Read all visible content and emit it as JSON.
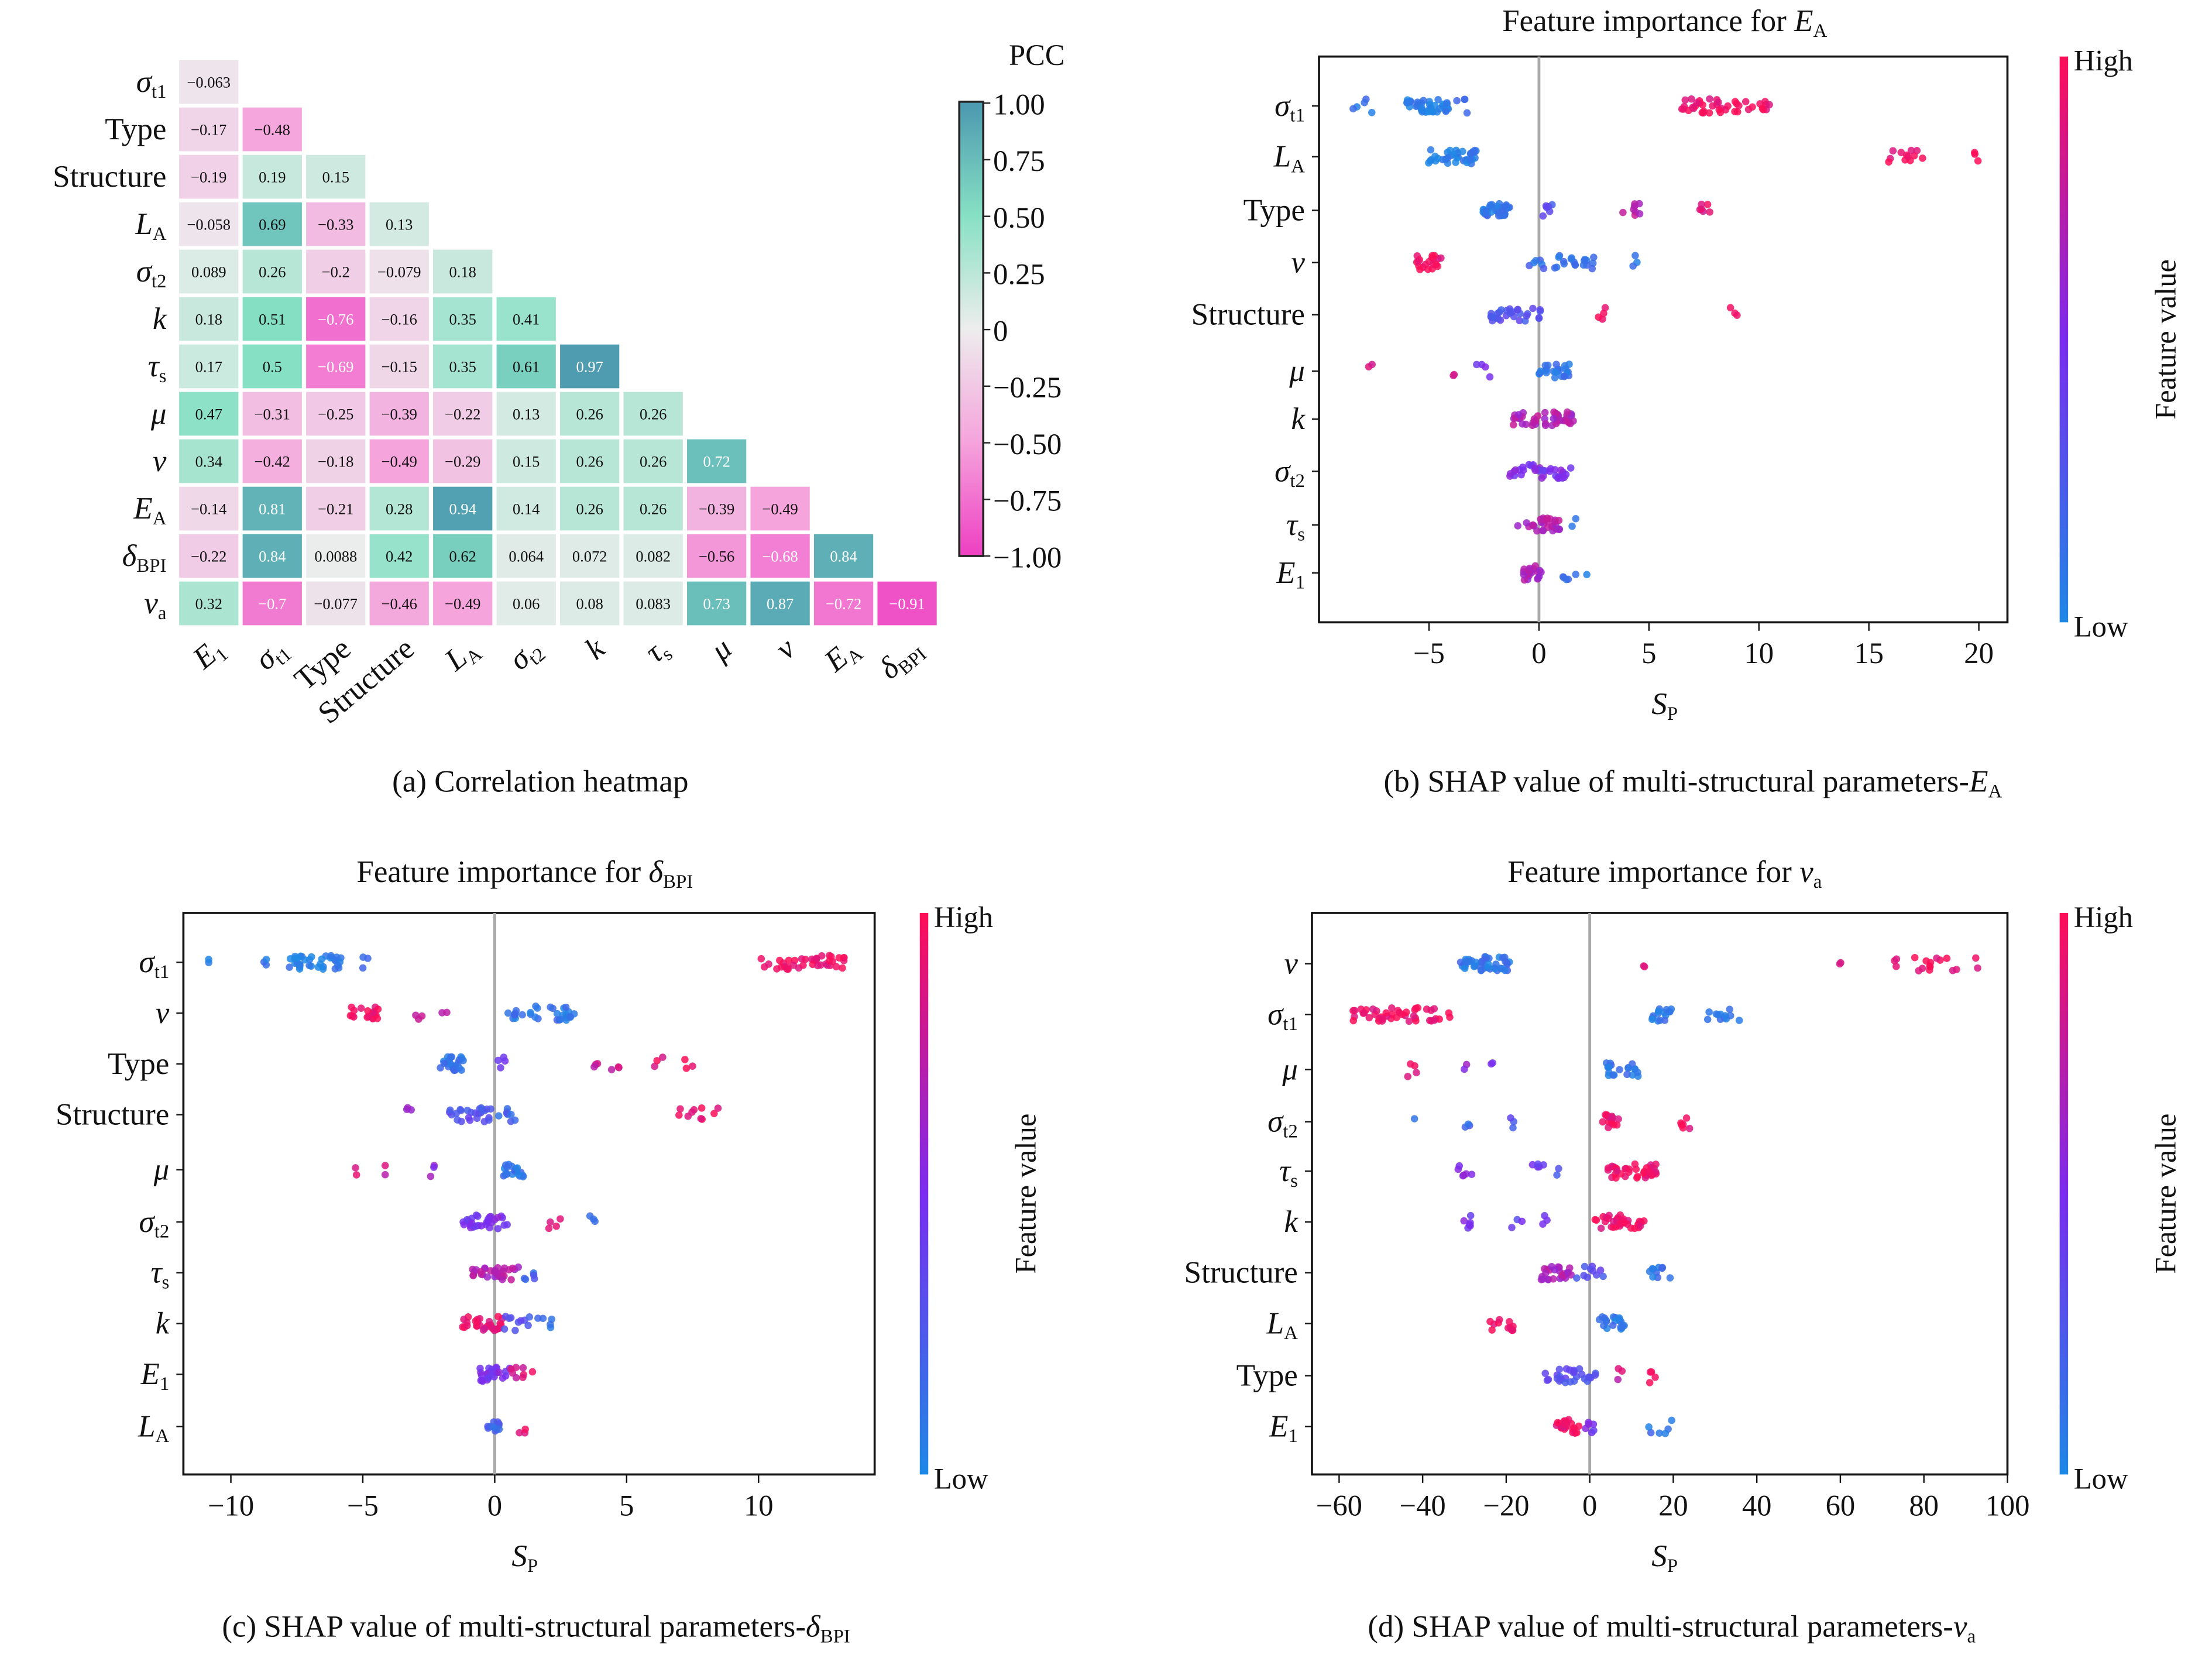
{
  "colors": {
    "pcc_scale": [
      "#ee3fc2",
      "#f5a3dc",
      "#ededed",
      "#86e0c3",
      "#4b98b0"
    ],
    "shap_low": "#1e88e5",
    "shap_mid": "#7b2cf0",
    "shap_high": "#ff0d57"
  },
  "heatmap": {
    "type": "heatmap",
    "caption": "(a) Correlation heatmap",
    "colorbar_title": "PCC",
    "colorbar_ticks": [
      "1.00",
      "0.75",
      "0.50",
      "0.25",
      "0",
      "−0.25",
      "−0.50",
      "−0.75",
      "−1.00"
    ],
    "colorbar_range": [
      -1,
      1
    ],
    "row_labels": [
      {
        "t": "σ",
        "s": "t1"
      },
      {
        "t": "Type",
        "s": ""
      },
      {
        "t": "Structure",
        "s": ""
      },
      {
        "t": "L",
        "s": "A"
      },
      {
        "t": "σ",
        "s": "t2"
      },
      {
        "t": "k",
        "s": ""
      },
      {
        "t": "τ",
        "s": "s"
      },
      {
        "t": "μ",
        "s": ""
      },
      {
        "t": "ν",
        "s": ""
      },
      {
        "t": "E",
        "s": "A"
      },
      {
        "t": "δ",
        "s": "BPI"
      },
      {
        "t": "ν",
        "s": "a"
      }
    ],
    "col_labels": [
      {
        "t": "E",
        "s": "1"
      },
      {
        "t": "σ",
        "s": "t1"
      },
      {
        "t": "Type",
        "s": ""
      },
      {
        "t": "Structure",
        "s": ""
      },
      {
        "t": "L",
        "s": "A"
      },
      {
        "t": "σ",
        "s": "t2"
      },
      {
        "t": "k",
        "s": ""
      },
      {
        "t": "τ",
        "s": "s"
      },
      {
        "t": "μ",
        "s": ""
      },
      {
        "t": "ν",
        "s": ""
      },
      {
        "t": "E",
        "s": "A"
      },
      {
        "t": "δ",
        "s": "BPI"
      }
    ],
    "values": [
      [
        "−0.063"
      ],
      [
        "−0.17",
        "−0.48"
      ],
      [
        "−0.19",
        "0.19",
        "0.15"
      ],
      [
        "−0.058",
        "0.69",
        "−0.33",
        "0.13"
      ],
      [
        "0.089",
        "0.26",
        "−0.2",
        "−0.079",
        "0.18"
      ],
      [
        "0.18",
        "0.51",
        "−0.76",
        "−0.16",
        "0.35",
        "0.41"
      ],
      [
        "0.17",
        "0.5",
        "−0.69",
        "−0.15",
        "0.35",
        "0.61",
        "0.97"
      ],
      [
        "0.47",
        "−0.31",
        "−0.25",
        "−0.39",
        "−0.22",
        "0.13",
        "0.26",
        "0.26"
      ],
      [
        "0.34",
        "−0.42",
        "−0.18",
        "−0.49",
        "−0.29",
        "0.15",
        "0.26",
        "0.26",
        "0.72"
      ],
      [
        "−0.14",
        "0.81",
        "−0.21",
        "0.28",
        "0.94",
        "0.14",
        "0.26",
        "0.26",
        "−0.39",
        "−0.49"
      ],
      [
        "−0.22",
        "0.84",
        "0.0088",
        "0.42",
        "0.62",
        "0.064",
        "0.072",
        "0.082",
        "−0.56",
        "−0.68",
        "0.84"
      ],
      [
        "0.32",
        "−0.7",
        "−0.077",
        "−0.46",
        "−0.49",
        "0.06",
        "0.08",
        "0.083",
        "0.73",
        "0.87",
        "−0.72",
        "−0.91"
      ]
    ]
  },
  "chart_data": [
    {
      "type": "scatter",
      "title": "Feature importance for ",
      "title_sym": {
        "t": "E",
        "s": "A"
      },
      "xlabel": {
        "t": "S",
        "s": "P"
      },
      "caption": "(b) SHAP value of multi-structural parameters-",
      "caption_sym": {
        "t": "E",
        "s": "A"
      },
      "xticks": [
        -5,
        0,
        5,
        10,
        15,
        20
      ],
      "xlim": [
        -10,
        21.3
      ],
      "colorbar": {
        "high": "High",
        "low": "Low",
        "label": "Feature value"
      },
      "features": [
        {
          "label": {
            "t": "σ",
            "s": "t1"
          },
          "clusters": [
            [
              -5,
              1,
              0.05,
              40
            ],
            [
              -8,
              0.5,
              0.1,
              5
            ],
            [
              -3.5,
              0.3,
              0.1,
              4
            ],
            [
              8.5,
              2,
              0.95,
              40
            ],
            [
              6.5,
              0.2,
              0.9,
              2
            ]
          ]
        },
        {
          "label": {
            "t": "L",
            "s": "A"
          },
          "clusters": [
            [
              -4,
              1.2,
              0.05,
              40
            ],
            [
              16.7,
              0.8,
              0.95,
              12
            ],
            [
              20,
              0.2,
              0.95,
              3
            ]
          ]
        },
        {
          "label": {
            "t": "Type",
            "s": ""
          },
          "clusters": [
            [
              -2,
              0.7,
              0.1,
              35
            ],
            [
              0.3,
              0.3,
              0.3,
              6
            ],
            [
              4.2,
              0.4,
              0.7,
              8
            ],
            [
              7.5,
              0.3,
              0.9,
              6
            ]
          ]
        },
        {
          "label": {
            "t": "ν",
            "s": ""
          },
          "clusters": [
            [
              -5,
              0.6,
              0.95,
              20
            ],
            [
              1,
              1.5,
              0.15,
              25
            ],
            [
              4.3,
              0.2,
              0.1,
              3
            ]
          ]
        },
        {
          "label": {
            "t": "Structure",
            "s": ""
          },
          "clusters": [
            [
              -1,
              1.2,
              0.3,
              30
            ],
            [
              2.8,
              0.3,
              0.9,
              4
            ],
            [
              8.9,
              0.2,
              0.95,
              3
            ]
          ]
        },
        {
          "label": {
            "t": "μ",
            "s": ""
          },
          "clusters": [
            [
              -7.6,
              0.2,
              0.9,
              2
            ],
            [
              -4,
              0.2,
              0.8,
              2
            ],
            [
              -2.5,
              0.4,
              0.5,
              4
            ],
            [
              0.7,
              0.7,
              0.1,
              25
            ]
          ]
        },
        {
          "label": {
            "t": "k",
            "s": ""
          },
          "clusters": [
            [
              0.2,
              1.4,
              0.7,
              45
            ]
          ]
        },
        {
          "label": {
            "t": "σ",
            "s": "t2"
          },
          "clusters": [
            [
              0,
              1.5,
              0.5,
              35
            ]
          ]
        },
        {
          "label": {
            "t": "τ",
            "s": "s"
          },
          "clusters": [
            [
              0,
              1,
              0.7,
              30
            ],
            [
              1.6,
              0.1,
              0.1,
              2
            ]
          ]
        },
        {
          "label": {
            "t": "E",
            "s": "1"
          },
          "clusters": [
            [
              -0.3,
              0.4,
              0.7,
              20
            ],
            [
              1.6,
              0.6,
              0.1,
              6
            ]
          ]
        }
      ]
    },
    {
      "type": "scatter",
      "title": "Feature importance for ",
      "title_sym": {
        "t": "δ",
        "s": "BPI"
      },
      "xlabel": {
        "t": "S",
        "s": "P"
      },
      "caption": "(c) SHAP value of multi-structural parameters-",
      "caption_sym": {
        "t": "δ",
        "s": "BPI"
      },
      "xticks": [
        -10,
        -5,
        0,
        5,
        10
      ],
      "xlim": [
        -11.8,
        14.4
      ],
      "colorbar": {
        "high": "High",
        "low": "Low",
        "label": "Feature value"
      },
      "features": [
        {
          "label": {
            "t": "σ",
            "s": "t1"
          },
          "clusters": [
            [
              -6.8,
              1,
              0.05,
              35
            ],
            [
              -8.8,
              0.2,
              0.1,
              3
            ],
            [
              -10.8,
              0.1,
              0.1,
              2
            ],
            [
              -4.8,
              0.3,
              0.1,
              3
            ],
            [
              11.7,
              1.6,
              0.95,
              40
            ]
          ]
        },
        {
          "label": {
            "t": "ν",
            "s": ""
          },
          "clusters": [
            [
              -5,
              0.6,
              0.95,
              18
            ],
            [
              -3,
              0.3,
              0.8,
              3
            ],
            [
              -2,
              0.2,
              0.8,
              2
            ],
            [
              1.8,
              1.3,
              0.1,
              30
            ]
          ]
        },
        {
          "label": {
            "t": "Type",
            "s": ""
          },
          "clusters": [
            [
              -1.6,
              0.5,
              0.1,
              25
            ],
            [
              0.3,
              0.2,
              0.4,
              4
            ],
            [
              3.7,
              0.2,
              0.75,
              3
            ],
            [
              4.6,
              0.2,
              0.8,
              3
            ],
            [
              6.2,
              0.2,
              0.9,
              3
            ],
            [
              7.4,
              0.2,
              0.95,
              3
            ]
          ]
        },
        {
          "label": {
            "t": "Structure",
            "s": ""
          },
          "clusters": [
            [
              -3.3,
              0.2,
              0.6,
              3
            ],
            [
              -1,
              1,
              0.3,
              25
            ],
            [
              0.5,
              0.5,
              0.2,
              8
            ],
            [
              7.4,
              0.5,
              0.95,
              8
            ],
            [
              8.4,
              0.1,
              0.95,
              2
            ]
          ]
        },
        {
          "label": {
            "t": "μ",
            "s": ""
          },
          "clusters": [
            [
              -5.2,
              0.1,
              0.9,
              2
            ],
            [
              -4.1,
              0.1,
              0.8,
              2
            ],
            [
              -2.5,
              0.4,
              0.6,
              3
            ],
            [
              0.7,
              0.4,
              0.1,
              20
            ]
          ]
        },
        {
          "label": {
            "t": "σ",
            "s": "t2"
          },
          "clusters": [
            [
              -0.3,
              0.9,
              0.5,
              30
            ],
            [
              2.2,
              0.3,
              0.9,
              4
            ],
            [
              3.6,
              0.2,
              0.1,
              3
            ]
          ]
        },
        {
          "label": {
            "t": "τ",
            "s": "s"
          },
          "clusters": [
            [
              0,
              0.9,
              0.7,
              30
            ],
            [
              1.4,
              0.3,
              0.2,
              5
            ]
          ]
        },
        {
          "label": {
            "t": "k",
            "s": ""
          },
          "clusters": [
            [
              -0.5,
              0.8,
              0.9,
              30
            ],
            [
              0.8,
              0.6,
              0.3,
              10
            ],
            [
              2.1,
              0.5,
              0.1,
              5
            ]
          ]
        },
        {
          "label": {
            "t": "E",
            "s": "1"
          },
          "clusters": [
            [
              0,
              0.6,
              0.5,
              25
            ],
            [
              1,
              0.5,
              0.85,
              8
            ]
          ]
        },
        {
          "label": {
            "t": "L",
            "s": "A"
          },
          "clusters": [
            [
              0,
              0.3,
              0.2,
              12
            ],
            [
              1,
              0.2,
              0.9,
              3
            ]
          ]
        }
      ]
    },
    {
      "type": "scatter",
      "title": "Feature importance for ",
      "title_sym": {
        "t": "ν",
        "s": "a"
      },
      "xlabel": {
        "t": "S",
        "s": "P"
      },
      "caption": "(d) SHAP value of multi-structural parameters-",
      "caption_sym": {
        "t": "ν",
        "s": "a"
      },
      "xticks": [
        -60,
        -40,
        -20,
        0,
        20,
        40,
        60,
        80,
        100
      ],
      "xlim": [
        -66.5,
        100
      ],
      "colorbar": {
        "high": "High",
        "low": "Low",
        "label": "Feature value"
      },
      "features": [
        {
          "label": {
            "t": "ν",
            "s": ""
          },
          "clusters": [
            [
              -25,
              6,
              0.1,
              45
            ],
            [
              13,
              0.3,
              0.9,
              2
            ],
            [
              60,
              0.3,
              0.85,
              2
            ],
            [
              73,
              0.5,
              0.9,
              3
            ],
            [
              85,
              8,
              0.95,
              15
            ]
          ]
        },
        {
          "label": {
            "t": "σ",
            "s": "t1"
          },
          "clusters": [
            [
              -45,
              12,
              0.95,
              45
            ],
            [
              17,
              3,
              0.1,
              15
            ],
            [
              32,
              4,
              0.1,
              12
            ]
          ]
        },
        {
          "label": {
            "t": "μ",
            "s": ""
          },
          "clusters": [
            [
              -43,
              2,
              0.9,
              4
            ],
            [
              -30,
              1,
              0.6,
              2
            ],
            [
              -24,
              1,
              0.5,
              2
            ],
            [
              8,
              4,
              0.1,
              20
            ]
          ]
        },
        {
          "label": {
            "t": "σ",
            "s": "t2"
          },
          "clusters": [
            [
              -42,
              0.5,
              0.2,
              1
            ],
            [
              -29,
              1,
              0.2,
              3
            ],
            [
              -19,
              1,
              0.3,
              3
            ],
            [
              5,
              2,
              0.95,
              15
            ],
            [
              23,
              2,
              0.95,
              6
            ]
          ]
        },
        {
          "label": {
            "t": "τ",
            "s": "s"
          },
          "clusters": [
            [
              -30,
              2,
              0.6,
              6
            ],
            [
              -12,
              2,
              0.4,
              5
            ],
            [
              -7,
              1,
              0.3,
              2
            ],
            [
              10,
              6,
              0.95,
              35
            ]
          ]
        },
        {
          "label": {
            "t": "k",
            "s": ""
          },
          "clusters": [
            [
              -30,
              2,
              0.5,
              6
            ],
            [
              -17,
              2,
              0.4,
              3
            ],
            [
              -11,
              1,
              0.4,
              3
            ],
            [
              7,
              6,
              0.95,
              35
            ]
          ]
        },
        {
          "label": {
            "t": "Structure",
            "s": ""
          },
          "clusters": [
            [
              -8,
              4,
              0.7,
              25
            ],
            [
              0,
              4,
              0.3,
              10
            ],
            [
              17,
              3,
              0.1,
              10
            ]
          ]
        },
        {
          "label": {
            "t": "L",
            "s": "A"
          },
          "clusters": [
            [
              -21,
              3,
              0.95,
              12
            ],
            [
              6,
              4,
              0.1,
              20
            ]
          ]
        },
        {
          "label": {
            "t": "Type",
            "s": ""
          },
          "clusters": [
            [
              -10,
              1,
              0.4,
              3
            ],
            [
              -3,
              5,
              0.3,
              25
            ],
            [
              7,
              1,
              0.8,
              3
            ],
            [
              15,
              1,
              0.95,
              4
            ]
          ]
        },
        {
          "label": {
            "t": "E",
            "s": "1"
          },
          "clusters": [
            [
              -5,
              3,
              0.95,
              25
            ],
            [
              0,
              1,
              0.5,
              6
            ],
            [
              17,
              3,
              0.1,
              6
            ]
          ]
        }
      ]
    }
  ]
}
